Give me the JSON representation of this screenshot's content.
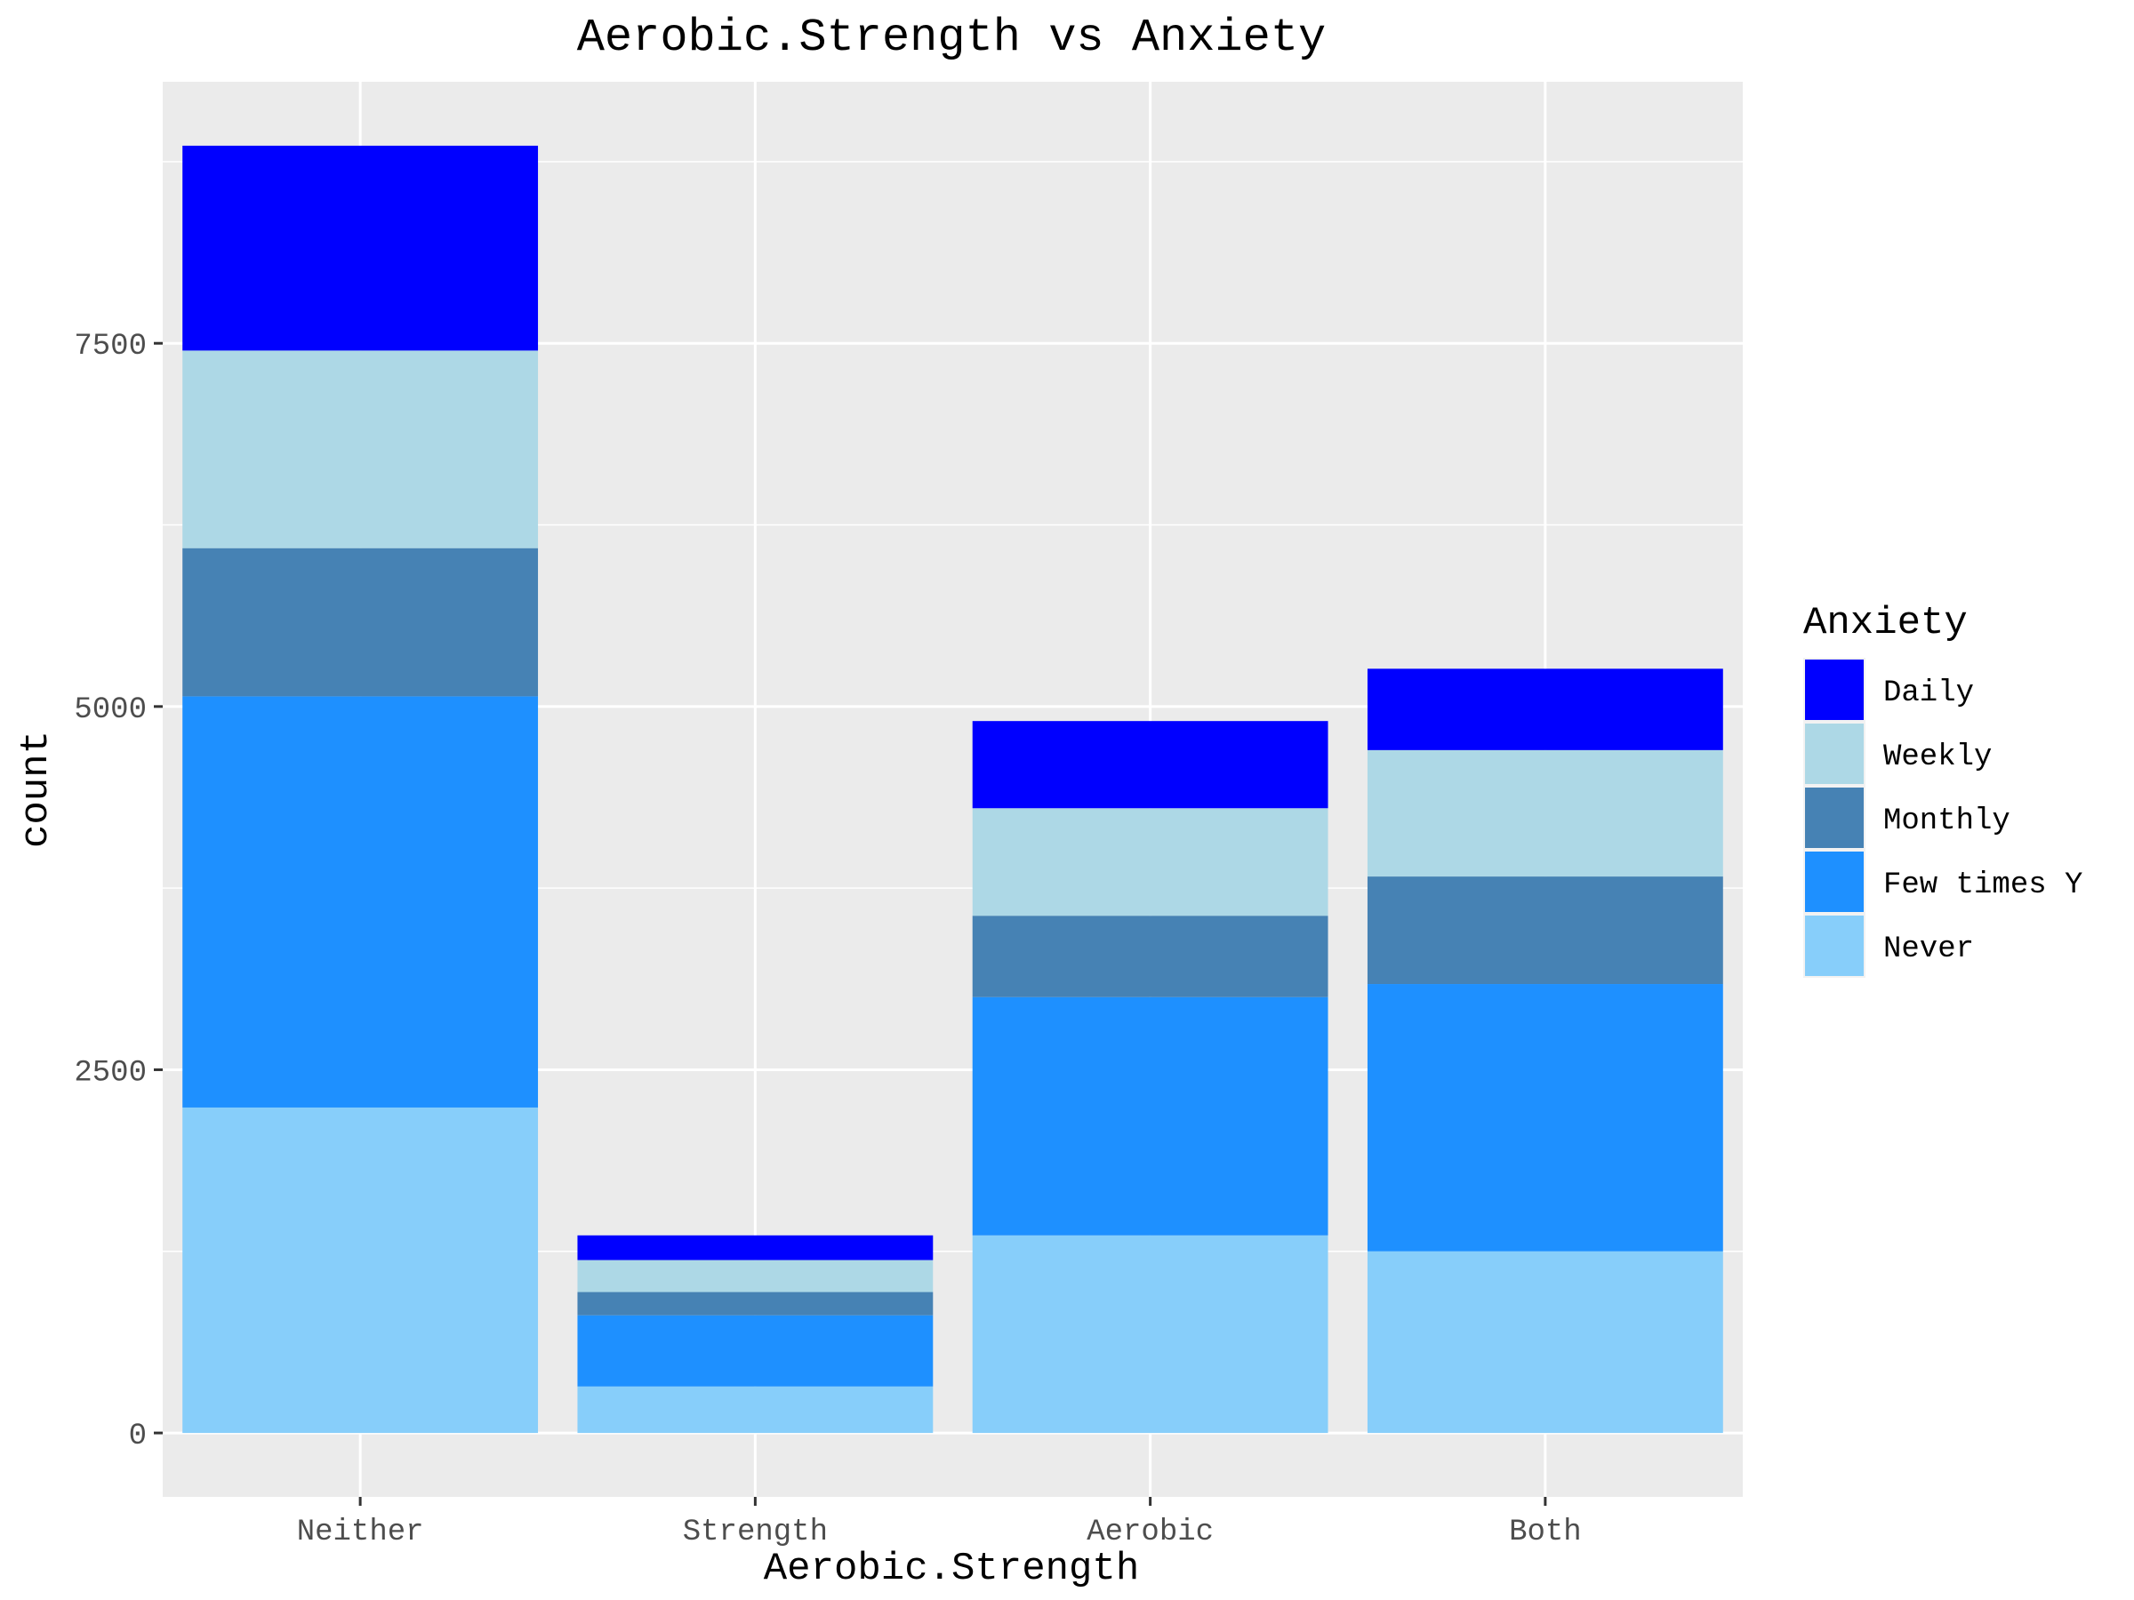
{
  "chart_data": {
    "type": "bar",
    "stacked": true,
    "title": "Aerobic.Strength vs Anxiety",
    "xlabel": "Aerobic.Strength",
    "ylabel": "count",
    "categories": [
      "Neither",
      "Strength",
      "Aerobic",
      "Both"
    ],
    "ylim": [
      -440,
      9300
    ],
    "yticks": [
      0,
      2500,
      5000,
      7500
    ],
    "y_minor_ticks": [
      1250,
      3750,
      6250,
      8750
    ],
    "grid": true,
    "legend": {
      "title": "Anxiety",
      "position": "right"
    },
    "series": [
      {
        "name": "Never",
        "color": "#87CEFA",
        "values": [
          2240,
          320,
          1360,
          1250
        ]
      },
      {
        "name": "Few times Y",
        "color": "#1E90FF",
        "values": [
          2830,
          490,
          1640,
          1840
        ]
      },
      {
        "name": "Monthly",
        "color": "#4682B4",
        "values": [
          1020,
          160,
          560,
          740
        ]
      },
      {
        "name": "Weekly",
        "color": "#ADD8E6",
        "values": [
          1360,
          220,
          740,
          870
        ]
      },
      {
        "name": "Daily",
        "color": "#0000FF",
        "values": [
          1410,
          170,
          600,
          560
        ]
      }
    ],
    "legend_order": [
      "Daily",
      "Weekly",
      "Monthly",
      "Few times Y",
      "Never"
    ]
  }
}
